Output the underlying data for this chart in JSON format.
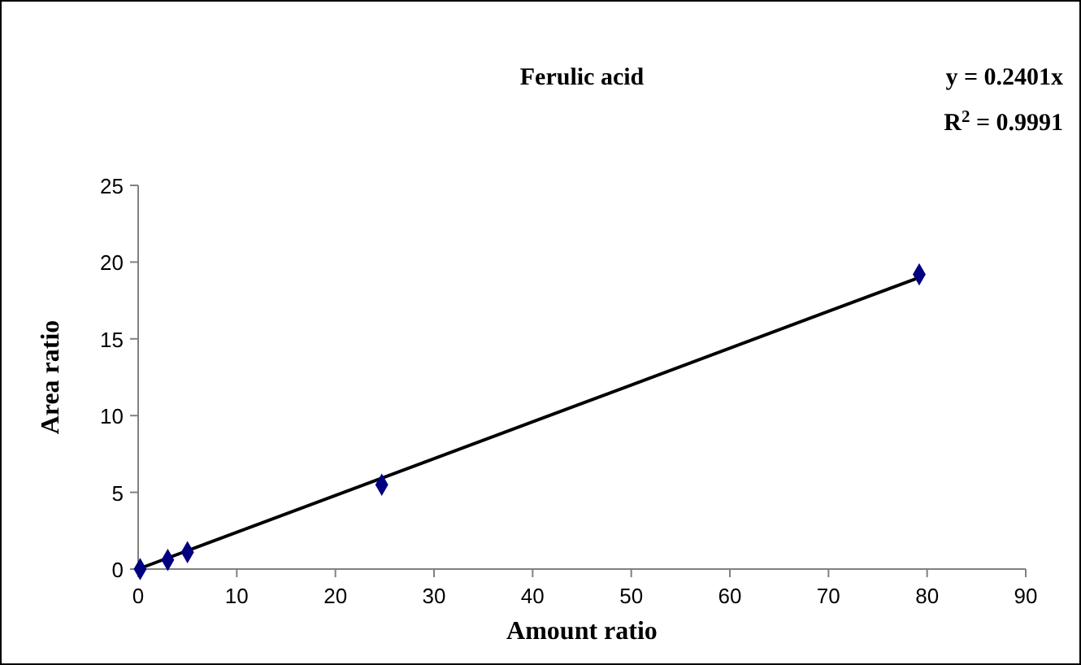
{
  "chart_data": {
    "type": "scatter",
    "title": "Ferulic acid",
    "xlabel": "Amount ratio",
    "ylabel": "Area ratio",
    "xlim": [
      0,
      90
    ],
    "xticks": [
      0,
      10,
      20,
      30,
      40,
      50,
      60,
      70,
      80,
      90
    ],
    "ylim": [
      0,
      25
    ],
    "yticks": [
      0,
      5,
      10,
      15,
      20,
      25
    ],
    "grid": false,
    "series": [
      {
        "color": "#000080",
        "marker": "diamond",
        "x": [
          0.2,
          3,
          5,
          24.7,
          79.2
        ],
        "values": [
          0,
          0.6,
          1.1,
          5.5,
          19.2
        ]
      },
      {
        "type": "line",
        "color": "#000000",
        "marker": "none",
        "x": [
          0,
          79.2
        ],
        "values": [
          0,
          19.0
        ]
      }
    ],
    "annotations": [
      "y = 0.2401x",
      "R$^{2}$ = 0.9991"
    ]
  }
}
